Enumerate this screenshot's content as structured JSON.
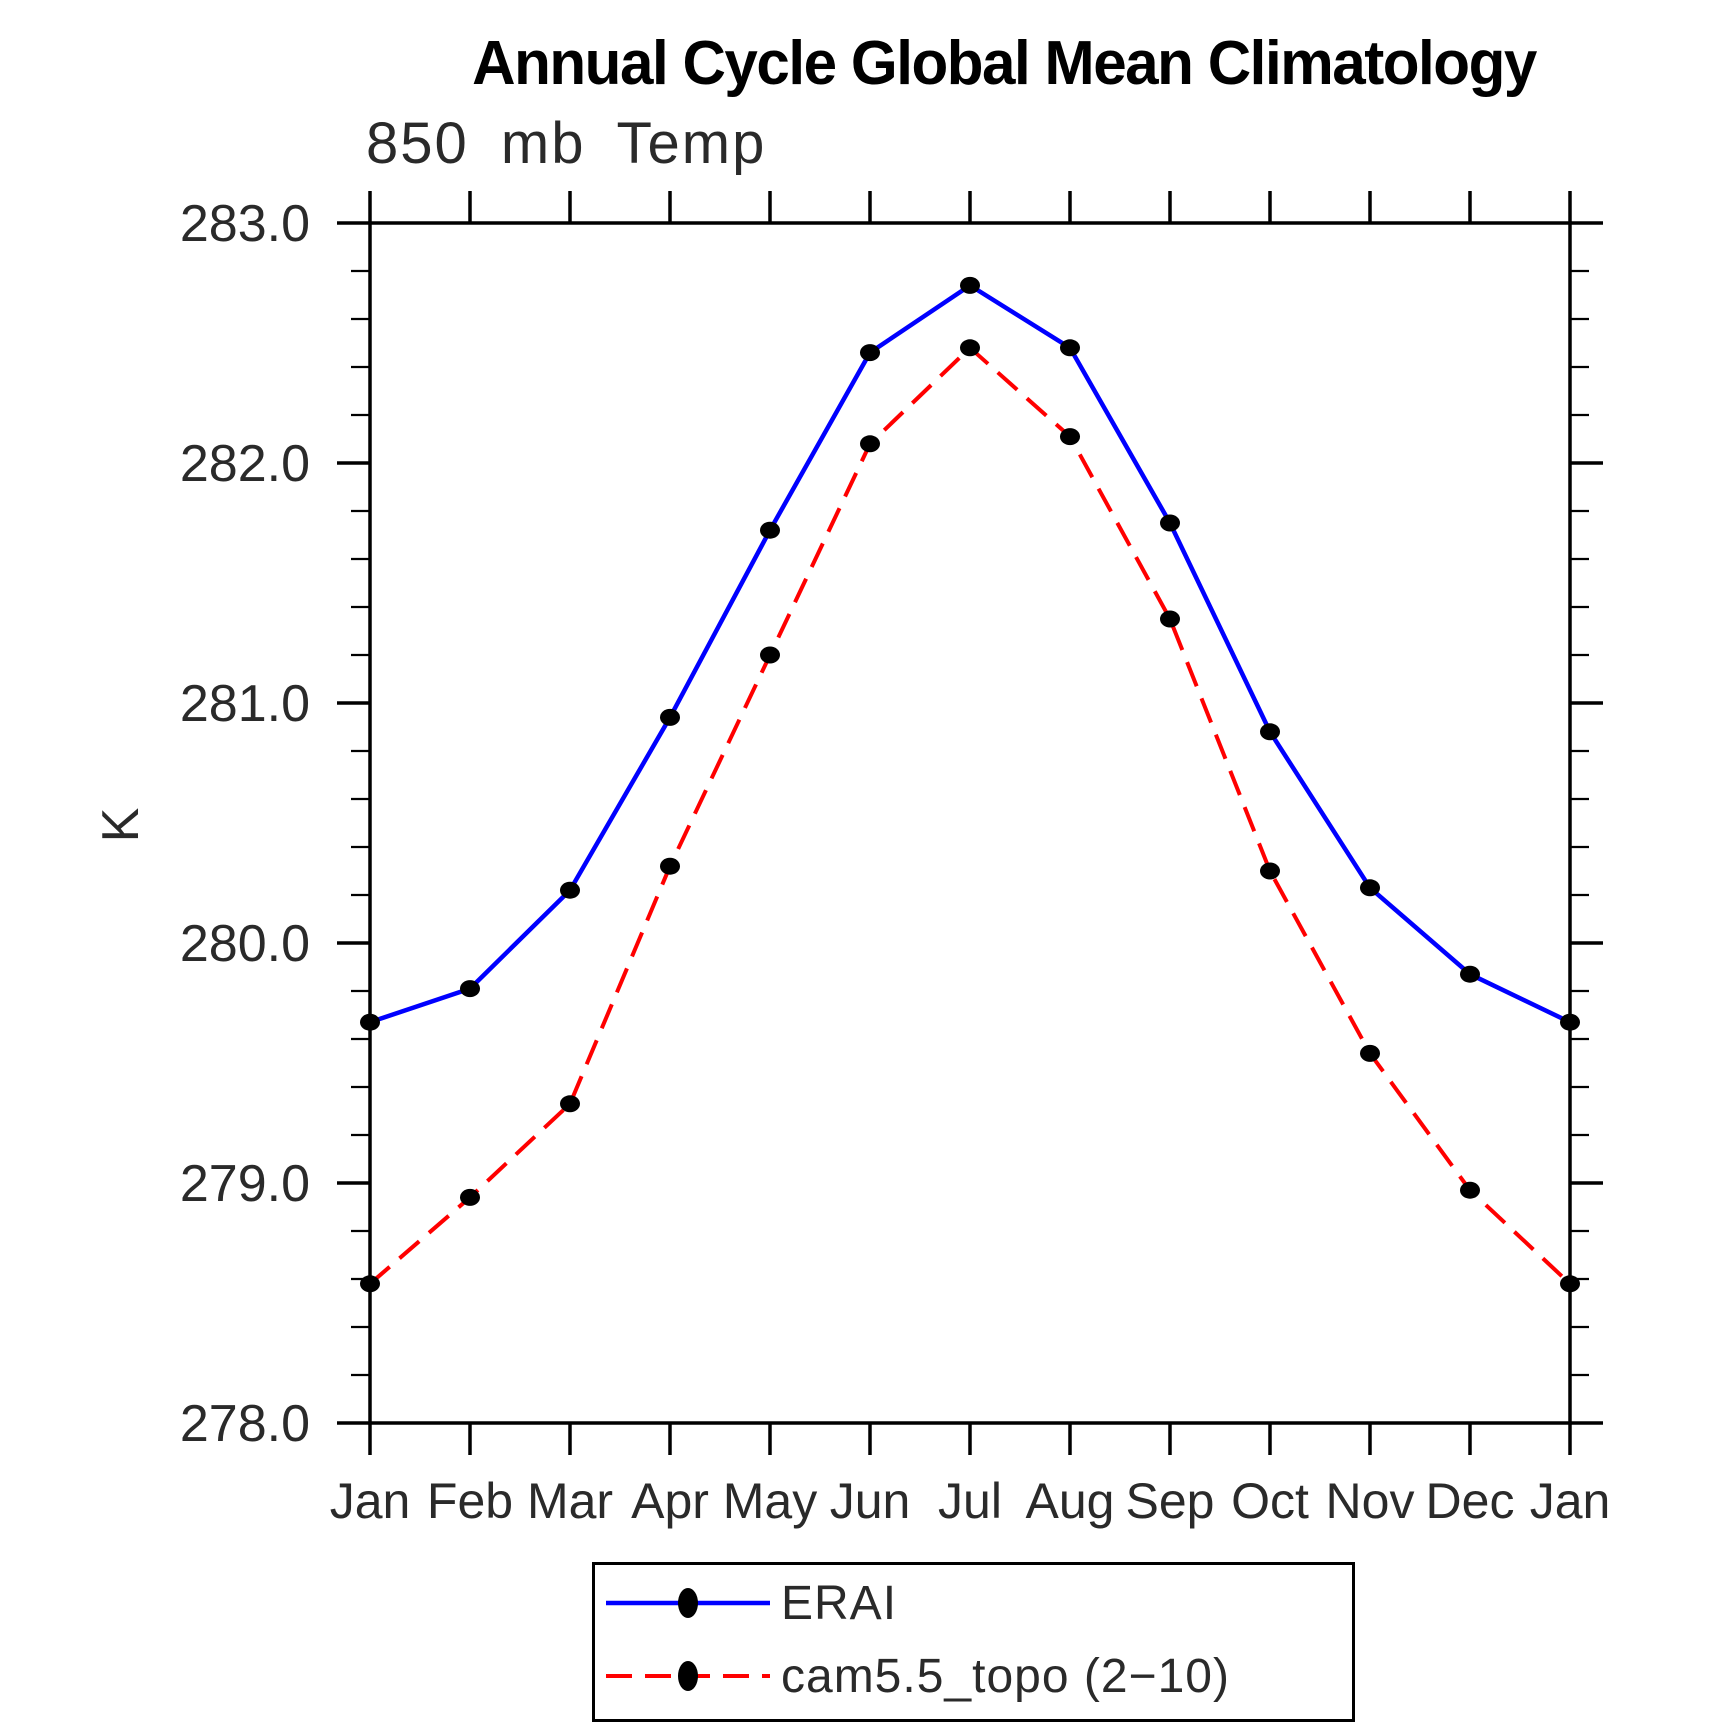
{
  "title": "Annual Cycle Global Mean Climatology",
  "subtitle": "850 mb Temp",
  "colors": {
    "axis": "#000000",
    "text": "#2a2a2a",
    "background": "#ffffff",
    "erai_line": "#0000ff",
    "cam_line": "#ff0000",
    "marker": "#000000"
  },
  "chart_data": {
    "type": "line",
    "title": "Annual Cycle Global Mean Climatology",
    "subtitle": "850 mb Temp",
    "xlabel": "",
    "ylabel": "K",
    "x_categories": [
      "Jan",
      "Feb",
      "Mar",
      "Apr",
      "May",
      "Jun",
      "Jul",
      "Aug",
      "Sep",
      "Oct",
      "Nov",
      "Dec",
      "Jan"
    ],
    "ylim": [
      278.0,
      283.0
    ],
    "y_major_step": 1.0,
    "y_minor_step": 0.2,
    "y_tick_labels": [
      "283.0",
      "282.0",
      "281.0",
      "280.0",
      "279.0",
      "278.0"
    ],
    "grid": false,
    "legend_position": "bottom-center",
    "series": [
      {
        "name": "ERAI",
        "color": "#0000ff",
        "line_style": "solid",
        "marker": "filled-circle",
        "marker_color": "#000000",
        "values": [
          279.67,
          279.81,
          280.22,
          280.94,
          281.72,
          282.46,
          282.74,
          282.48,
          281.75,
          280.88,
          280.23,
          279.87,
          279.67
        ]
      },
      {
        "name": "cam5.5_topo (2−10)",
        "color": "#ff0000",
        "line_style": "dashed",
        "marker": "filled-circle",
        "marker_color": "#000000",
        "values": [
          278.58,
          278.94,
          279.33,
          280.32,
          281.2,
          282.08,
          282.48,
          282.11,
          281.35,
          280.3,
          279.54,
          278.97,
          278.58
        ]
      }
    ]
  }
}
